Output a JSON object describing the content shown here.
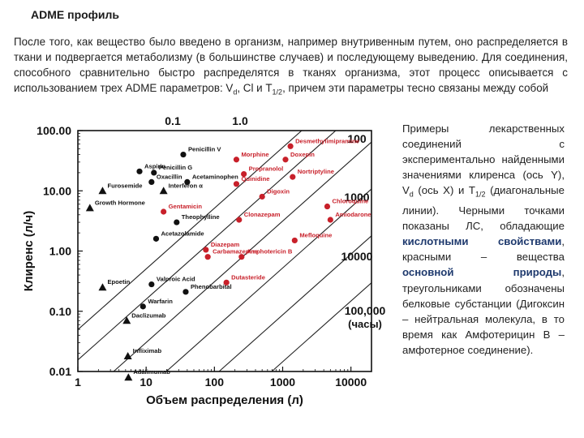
{
  "page": {
    "title": "ADME профиль",
    "intro": {
      "part1": "После того, как вещество было введено в организм, например внутривенным путем, оно распределяется в ткани и подвергается метаболизму (в большинстве случаев) и последующему выведению. Для соединения, способного сравнительно быстро распределятся в тканях организма, этот процесс описывается с использованием трех ADME параметров: V",
      "vd_sub": "d",
      "part2": ", Cl и T",
      "t_sub": "1/2",
      "part3": ", причем эти параметры тесно связаны между собой"
    },
    "side": {
      "p1": "Примеры лекарственных соединений с экспериментально найденными значениями клиренса (ось Y), V",
      "vd_sub": "d",
      "p2": " (ось X) и T",
      "t_sub": "1/2",
      "p3": " (диагональные линии). Черными точками показаны ЛС, обладающие ",
      "acid": "кислотными свойствами",
      "p4": ", красными – вещества ",
      "base": "основной природы",
      "p5": ", треугольниками обозначены белковые субстанции (Дигоксин – нейтральная молекула, в то время как Амфотерицин В – амфотерное соединение)."
    }
  },
  "chart_data": {
    "type": "scatter",
    "xlabel": "Объем распределения (л)",
    "ylabel": "Клиренс (л/ч)",
    "xscale": "log",
    "yscale": "log",
    "xlim": [
      1,
      20000
    ],
    "ylim": [
      0.01,
      100
    ],
    "x_ticks": [
      "1",
      "10",
      "100",
      "1000",
      "10000"
    ],
    "y_ticks": [
      "100.00",
      "10.00",
      "1.00",
      "0.10",
      "0.01"
    ],
    "halflife_lines": {
      "labels": [
        "0.1",
        "1.0",
        "100",
        "1000",
        "10000",
        "100,000"
      ],
      "unit": "(часы)"
    },
    "colors": {
      "acid": "#111111",
      "base": "#c8202a",
      "protein": "#111111"
    },
    "series": [
      {
        "name": "",
        "marker": "circle-black",
        "points": [
          {
            "label": "Penicillin V",
            "x": 35,
            "y": 40
          },
          {
            "label": "Aspirin",
            "x": 8,
            "y": 21
          },
          {
            "label": "Penicillin G",
            "x": 13,
            "y": 20
          },
          {
            "label": "Oxacillin",
            "x": 12,
            "y": 14
          },
          {
            "label": "Acetaminophen",
            "x": 40,
            "y": 14
          },
          {
            "label": "Theophylline",
            "x": 28,
            "y": 3.0
          },
          {
            "label": "Acetazolamide",
            "x": 14,
            "y": 1.6
          },
          {
            "label": "Valproic Acid",
            "x": 12,
            "y": 0.28
          },
          {
            "label": "Warfarin",
            "x": 9,
            "y": 0.12
          },
          {
            "label": "Phenobarbital",
            "x": 38,
            "y": 0.21
          }
        ]
      },
      {
        "name": "",
        "marker": "circle-red",
        "points": [
          {
            "label": "Desmethylimipramine",
            "x": 1300,
            "y": 55
          },
          {
            "label": "Morphine",
            "x": 210,
            "y": 33
          },
          {
            "label": "Doxepin",
            "x": 1100,
            "y": 33
          },
          {
            "label": "Propranolol",
            "x": 270,
            "y": 19
          },
          {
            "label": "Nortriptyline",
            "x": 1400,
            "y": 17
          },
          {
            "label": "Quinidine",
            "x": 210,
            "y": 13
          },
          {
            "label": "Digoxin",
            "x": 500,
            "y": 8
          },
          {
            "label": "Gentamicin",
            "x": 18,
            "y": 4.5
          },
          {
            "label": "Chloroquine",
            "x": 4500,
            "y": 5.5
          },
          {
            "label": "Clonazepam",
            "x": 230,
            "y": 3.3
          },
          {
            "label": "Amiodarone",
            "x": 5000,
            "y": 3.3
          },
          {
            "label": "Mefloquine",
            "x": 1500,
            "y": 1.5
          },
          {
            "label": "Diazepam",
            "x": 75,
            "y": 1.05
          },
          {
            "label": "Amphotericin B",
            "x": 250,
            "y": 0.8
          },
          {
            "label": "Carbamazepine",
            "x": 80,
            "y": 0.8
          },
          {
            "label": "Dutasteride",
            "x": 150,
            "y": 0.3
          }
        ]
      },
      {
        "name": "",
        "marker": "triangle",
        "points": [
          {
            "label": "Furosemide",
            "x": 2.3,
            "y": 10
          },
          {
            "label": "Interferon α",
            "x": 18,
            "y": 10
          },
          {
            "label": "Growth Hormone",
            "x": 1.5,
            "y": 5.2
          },
          {
            "label": "Epoetin",
            "x": 2.3,
            "y": 0.25
          },
          {
            "label": "Daclizumab",
            "x": 5.2,
            "y": 0.07
          },
          {
            "label": "Infliximab",
            "x": 5.4,
            "y": 0.018
          },
          {
            "label": "Adalimumab",
            "x": 5.5,
            "y": 0.008
          }
        ]
      }
    ]
  }
}
